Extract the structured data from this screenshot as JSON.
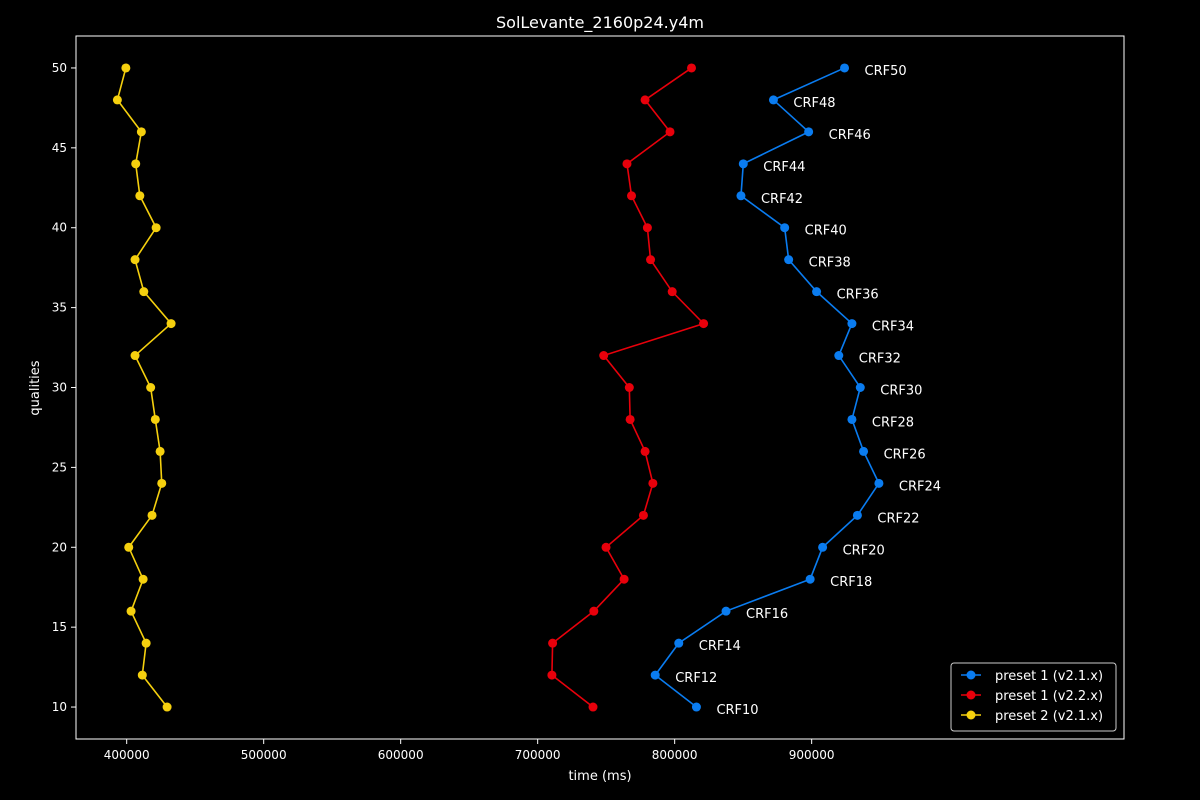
{
  "chart_data": {
    "type": "line",
    "title": "SolLevante_2160p24.y4m",
    "xlabel": "time (ms)",
    "ylabel": "qualities",
    "xlim": [
      363000,
      1128000
    ],
    "ylim": [
      8,
      52
    ],
    "xticks": [
      400000,
      500000,
      600000,
      700000,
      800000,
      900000
    ],
    "yticks": [
      10,
      15,
      20,
      25,
      30,
      35,
      40,
      45,
      50
    ],
    "grid": false,
    "legend_position": "bottom-right",
    "background": "#000000",
    "series": [
      {
        "name": "preset 1 (v2.1.x)",
        "color": "#0a7cf0",
        "points": [
          {
            "x": 815900,
            "y": 10,
            "label": "CRF10"
          },
          {
            "x": 785800,
            "y": 12,
            "label": "CRF12"
          },
          {
            "x": 803000,
            "y": 14,
            "label": "CRF14"
          },
          {
            "x": 837500,
            "y": 16,
            "label": "CRF16"
          },
          {
            "x": 898900,
            "y": 18,
            "label": "CRF18"
          },
          {
            "x": 908000,
            "y": 20,
            "label": "CRF20"
          },
          {
            "x": 933400,
            "y": 22,
            "label": "CRF22"
          },
          {
            "x": 949100,
            "y": 24,
            "label": "CRF24"
          },
          {
            "x": 937900,
            "y": 26,
            "label": "CRF26"
          },
          {
            "x": 929400,
            "y": 28,
            "label": "CRF28"
          },
          {
            "x": 935500,
            "y": 30,
            "label": "CRF30"
          },
          {
            "x": 919800,
            "y": 32,
            "label": "CRF32"
          },
          {
            "x": 929400,
            "y": 34,
            "label": "CRF34"
          },
          {
            "x": 903600,
            "y": 36,
            "label": "CRF36"
          },
          {
            "x": 883200,
            "y": 38,
            "label": "CRF38"
          },
          {
            "x": 880300,
            "y": 40,
            "label": "CRF40"
          },
          {
            "x": 848400,
            "y": 42,
            "label": "CRF42"
          },
          {
            "x": 850100,
            "y": 44,
            "label": "CRF44"
          },
          {
            "x": 897800,
            "y": 46,
            "label": "CRF46"
          },
          {
            "x": 872100,
            "y": 48,
            "label": "CRF48"
          },
          {
            "x": 924000,
            "y": 50,
            "label": "CRF50"
          }
        ]
      },
      {
        "name": "preset 1 (v2.2.x)",
        "color": "#e8000b",
        "points": [
          {
            "x": 740400,
            "y": 10
          },
          {
            "x": 710400,
            "y": 12
          },
          {
            "x": 710900,
            "y": 14
          },
          {
            "x": 741000,
            "y": 16
          },
          {
            "x": 763100,
            "y": 18
          },
          {
            "x": 749900,
            "y": 20
          },
          {
            "x": 777200,
            "y": 22
          },
          {
            "x": 784100,
            "y": 24
          },
          {
            "x": 778400,
            "y": 26
          },
          {
            "x": 767500,
            "y": 28
          },
          {
            "x": 766900,
            "y": 30
          },
          {
            "x": 748200,
            "y": 32
          },
          {
            "x": 821100,
            "y": 34
          },
          {
            "x": 798200,
            "y": 36
          },
          {
            "x": 782400,
            "y": 38
          },
          {
            "x": 780100,
            "y": 40
          },
          {
            "x": 768500,
            "y": 42
          },
          {
            "x": 765200,
            "y": 44
          },
          {
            "x": 796600,
            "y": 46
          },
          {
            "x": 778400,
            "y": 48
          },
          {
            "x": 812300,
            "y": 50
          }
        ]
      },
      {
        "name": "preset 2 (v2.1.x)",
        "color": "#f5d00e",
        "points": [
          {
            "x": 429500,
            "y": 10
          },
          {
            "x": 411400,
            "y": 12
          },
          {
            "x": 414200,
            "y": 14
          },
          {
            "x": 403200,
            "y": 16
          },
          {
            "x": 412000,
            "y": 18
          },
          {
            "x": 401500,
            "y": 20
          },
          {
            "x": 418500,
            "y": 22
          },
          {
            "x": 425600,
            "y": 24
          },
          {
            "x": 424400,
            "y": 26
          },
          {
            "x": 420900,
            "y": 28
          },
          {
            "x": 417500,
            "y": 30
          },
          {
            "x": 406100,
            "y": 32
          },
          {
            "x": 432400,
            "y": 34
          },
          {
            "x": 412500,
            "y": 36
          },
          {
            "x": 406100,
            "y": 38
          },
          {
            "x": 421500,
            "y": 40
          },
          {
            "x": 409600,
            "y": 42
          },
          {
            "x": 406600,
            "y": 44
          },
          {
            "x": 410700,
            "y": 46
          },
          {
            "x": 393200,
            "y": 48
          },
          {
            "x": 399400,
            "y": 50
          }
        ]
      }
    ]
  }
}
